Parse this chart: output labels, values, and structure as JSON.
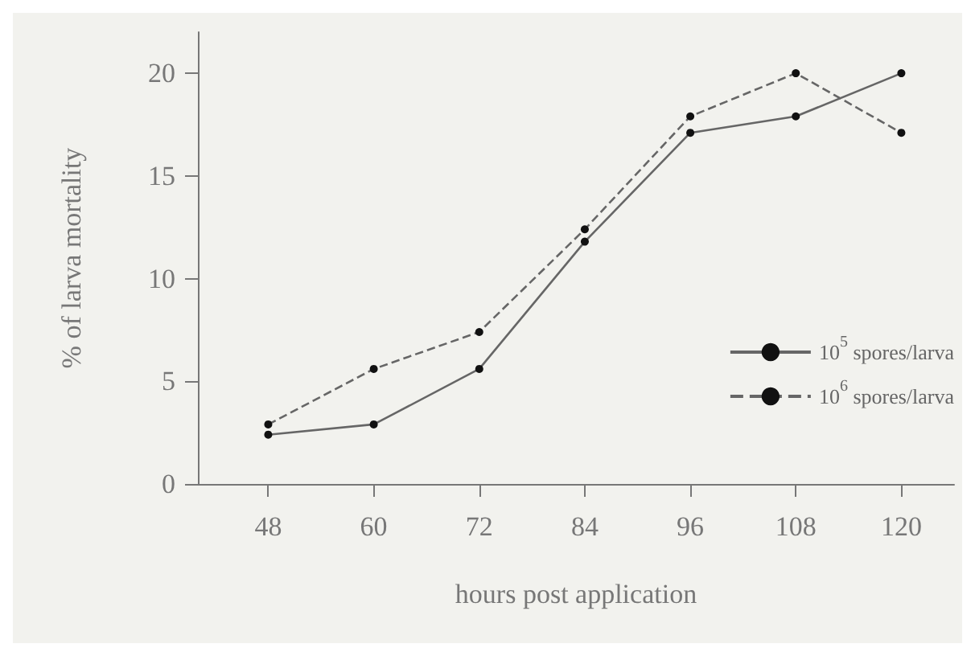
{
  "chart_data": {
    "type": "line",
    "xlabel": "hours post application",
    "ylabel": "% of larva mortality",
    "x": [
      48,
      60,
      72,
      84,
      96,
      108,
      120
    ],
    "xlim": [
      40,
      126
    ],
    "xticks": [
      48,
      60,
      72,
      84,
      96,
      108,
      120
    ],
    "ylim": [
      0,
      22
    ],
    "yticks": [
      0,
      5,
      10,
      15,
      20
    ],
    "series": [
      {
        "name": "10$^{5}$ spores/larva",
        "color": "#666666",
        "line_style": "solid",
        "values": [
          2.4,
          2.9,
          5.6,
          11.8,
          17.1,
          17.9,
          20
        ]
      },
      {
        "name": "10$^{6}$ spores/larva",
        "color": "#666666",
        "line_style": "dashed",
        "values": [
          2.9,
          5.6,
          7.4,
          12.4,
          17.9,
          20,
          17.1
        ]
      }
    ],
    "marker": "circle",
    "grid": false,
    "legend": "right"
  }
}
